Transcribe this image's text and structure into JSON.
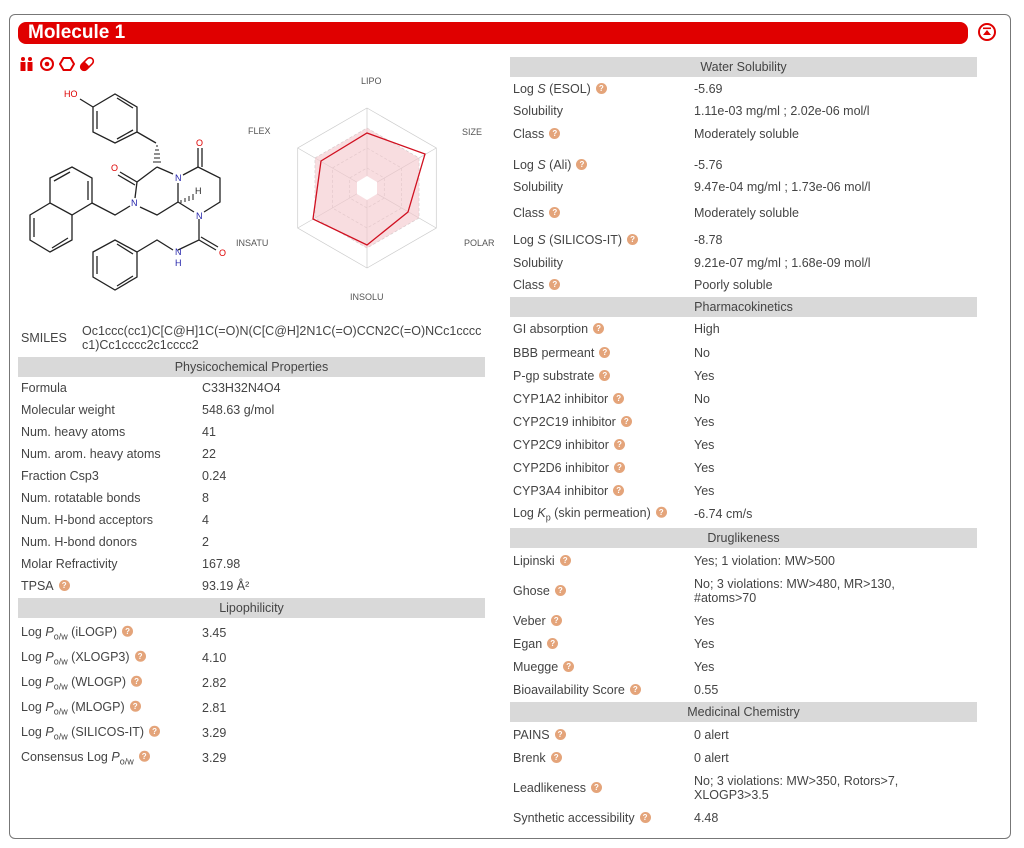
{
  "title": "Molecule 1",
  "toolbar_icons": [
    "lipinski-icon",
    "target-icon",
    "ring-icon",
    "pill-icon"
  ],
  "colors": {
    "accent": "#e00000",
    "section_bg": "#d9d9d9",
    "help": "#e4a47a"
  },
  "molecule": {
    "atoms": {
      "ho": "HO",
      "o": "O",
      "n": "N",
      "h": "H"
    }
  },
  "radar": {
    "axes": [
      "LIPO",
      "SIZE",
      "POLAR",
      "INSOLU",
      "INSATU",
      "FLEX"
    ]
  },
  "smiles": {
    "label": "SMILES",
    "value": "Oc1ccc(cc1)C[C@H]1C(=O)N(C[C@H]2N1C(=O)CCN2C(=O)NCc1ccccc1)Cc1cccc2c1cccc2"
  },
  "physchem": {
    "title": "Physicochemical Properties",
    "rows": [
      {
        "label": "Formula",
        "value": "C33H32N4O4"
      },
      {
        "label": "Molecular weight",
        "value": "548.63 g/mol"
      },
      {
        "label": "Num. heavy atoms",
        "value": "41"
      },
      {
        "label": "Num. arom. heavy atoms",
        "value": "22"
      },
      {
        "label": "Fraction Csp3",
        "value": "0.24"
      },
      {
        "label": "Num. rotatable bonds",
        "value": "8"
      },
      {
        "label": "Num. H-bond acceptors",
        "value": "4"
      },
      {
        "label": "Num. H-bond donors",
        "value": "2"
      },
      {
        "label": "Molar Refractivity",
        "value": "167.98"
      },
      {
        "label": "TPSA",
        "value": "93.19 Å²",
        "help": true
      }
    ]
  },
  "lipophilicity": {
    "title": "Lipophilicity",
    "rows": [
      {
        "pre": "Log ",
        "ital": "P",
        "sub": "o/w",
        "post": " (iLOGP)",
        "value": "3.45",
        "help": true
      },
      {
        "pre": "Log ",
        "ital": "P",
        "sub": "o/w",
        "post": " (XLOGP3)",
        "value": "4.10",
        "help": true
      },
      {
        "pre": "Log ",
        "ital": "P",
        "sub": "o/w",
        "post": " (WLOGP)",
        "value": "2.82",
        "help": true
      },
      {
        "pre": "Log ",
        "ital": "P",
        "sub": "o/w",
        "post": " (MLOGP)",
        "value": "2.81",
        "help": true
      },
      {
        "pre": "Log ",
        "ital": "P",
        "sub": "o/w",
        "post": " (SILICOS-IT)",
        "value": "3.29",
        "help": true
      },
      {
        "pre": "Consensus Log ",
        "ital": "P",
        "sub": "o/w",
        "post": "",
        "value": "3.29",
        "help": true
      }
    ]
  },
  "water_solubility": {
    "title": "Water Solubility",
    "rows": [
      {
        "pre": "Log ",
        "ital": "S",
        "post": " (ESOL)",
        "value": "-5.69",
        "help": true
      },
      {
        "label": "Solubility",
        "value": "1.11e-03 mg/ml ; 2.02e-06 mol/l"
      },
      {
        "label": "Class",
        "value": "Moderately soluble",
        "help": true
      },
      {
        "pre": "Log ",
        "ital": "S",
        "post": " (Ali)",
        "value": "-5.76",
        "help": true
      },
      {
        "label": "Solubility",
        "value": "9.47e-04 mg/ml ; 1.73e-06 mol/l"
      },
      {
        "label": "Class",
        "value": "Moderately soluble",
        "help": true
      },
      {
        "pre": "Log ",
        "ital": "S",
        "post": " (SILICOS-IT)",
        "value": "-8.78",
        "help": true
      },
      {
        "label": "Solubility",
        "value": "9.21e-07 mg/ml ; 1.68e-09 mol/l"
      },
      {
        "label": "Class",
        "value": "Poorly soluble",
        "help": true
      }
    ]
  },
  "pharmacokinetics": {
    "title": "Pharmacokinetics",
    "rows": [
      {
        "label": "GI absorption",
        "value": "High",
        "help": true
      },
      {
        "label": "BBB permeant",
        "value": "No",
        "help": true
      },
      {
        "label": "P-gp substrate",
        "value": "Yes",
        "help": true
      },
      {
        "label": "CYP1A2 inhibitor",
        "value": "No",
        "help": true
      },
      {
        "label": "CYP2C19 inhibitor",
        "value": "Yes",
        "help": true
      },
      {
        "label": "CYP2C9 inhibitor",
        "value": "Yes",
        "help": true
      },
      {
        "label": "CYP2D6 inhibitor",
        "value": "Yes",
        "help": true
      },
      {
        "label": "CYP3A4 inhibitor",
        "value": "Yes",
        "help": true
      },
      {
        "pre": "Log ",
        "ital": "K",
        "sub": "p",
        "post": " (skin permeation)",
        "value": "-6.74 cm/s",
        "help": true
      }
    ]
  },
  "druglikeness": {
    "title": "Druglikeness",
    "rows": [
      {
        "label": "Lipinski",
        "value": "Yes; 1 violation: MW>500",
        "help": true
      },
      {
        "label": "Ghose",
        "value": "No; 3 violations: MW>480, MR>130, #atoms>70",
        "help": true
      },
      {
        "label": "Veber",
        "value": "Yes",
        "help": true
      },
      {
        "label": "Egan",
        "value": "Yes",
        "help": true
      },
      {
        "label": "Muegge",
        "value": "Yes",
        "help": true
      },
      {
        "label": "Bioavailability Score",
        "value": "0.55",
        "help": true
      }
    ]
  },
  "medicinal_chemistry": {
    "title": "Medicinal Chemistry",
    "rows": [
      {
        "label": "PAINS",
        "value": "0 alert",
        "help": true
      },
      {
        "label": "Brenk",
        "value": "0 alert",
        "help": true
      },
      {
        "label": "Leadlikeness",
        "value": "No; 3 violations: MW>350, Rotors>7, XLOGP3>3.5",
        "help": true
      },
      {
        "label": "Synthetic accessibility",
        "value": "4.48",
        "help": true
      }
    ]
  }
}
